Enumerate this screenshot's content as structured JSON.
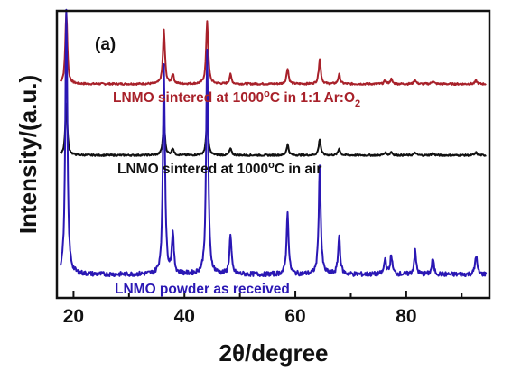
{
  "chart_data": {
    "type": "line",
    "panel_label": "(a)",
    "xlabel": "2θ/degree",
    "ylabel": "Intensity/(a.u.)",
    "xlim": [
      17,
      95
    ],
    "xticks": [
      20,
      40,
      60,
      80
    ],
    "y_ticks_labeled": false,
    "grid": false,
    "legend": "none",
    "series": [
      {
        "label_parts": [
          "LNMO  sintered at 1000",
          "o",
          "C in  1:1 Ar:O",
          "2"
        ],
        "color": "#a8212a",
        "baseline": 0.0,
        "peaks": [
          {
            "x": 18.7,
            "height": 0.45
          },
          {
            "x": 36.3,
            "height": 0.34
          },
          {
            "x": 37.9,
            "height": 0.06
          },
          {
            "x": 44.1,
            "height": 0.4
          },
          {
            "x": 48.3,
            "height": 0.06
          },
          {
            "x": 58.6,
            "height": 0.1
          },
          {
            "x": 64.4,
            "height": 0.16
          },
          {
            "x": 67.9,
            "height": 0.06
          },
          {
            "x": 76.2,
            "height": 0.02
          },
          {
            "x": 77.3,
            "height": 0.03
          },
          {
            "x": 81.6,
            "height": 0.025
          },
          {
            "x": 84.8,
            "height": 0.02
          },
          {
            "x": 92.6,
            "height": 0.02
          }
        ]
      },
      {
        "label_parts": [
          "LNMO sintered at 1000",
          "o",
          "C  in air"
        ],
        "color": "#111111",
        "baseline": 0.0,
        "peaks": [
          {
            "x": 18.7,
            "height": 0.38
          },
          {
            "x": 36.3,
            "height": 0.25
          },
          {
            "x": 37.9,
            "height": 0.05
          },
          {
            "x": 44.1,
            "height": 0.27
          },
          {
            "x": 48.3,
            "height": 0.05
          },
          {
            "x": 58.6,
            "height": 0.08
          },
          {
            "x": 64.4,
            "height": 0.12
          },
          {
            "x": 67.9,
            "height": 0.05
          },
          {
            "x": 76.2,
            "height": 0.02
          },
          {
            "x": 77.3,
            "height": 0.025
          },
          {
            "x": 81.6,
            "height": 0.02
          },
          {
            "x": 84.8,
            "height": 0.015
          },
          {
            "x": 92.6,
            "height": 0.02
          }
        ]
      },
      {
        "label_parts": [
          "LNMO powder as received"
        ],
        "color": "#2a17b4",
        "baseline": 0.0,
        "peaks": [
          {
            "x": 18.7,
            "height": 0.68
          },
          {
            "x": 36.3,
            "height": 0.54
          },
          {
            "x": 37.9,
            "height": 0.1
          },
          {
            "x": 44.1,
            "height": 0.58
          },
          {
            "x": 48.3,
            "height": 0.1
          },
          {
            "x": 58.6,
            "height": 0.16
          },
          {
            "x": 64.4,
            "height": 0.28
          },
          {
            "x": 67.9,
            "height": 0.1
          },
          {
            "x": 76.2,
            "height": 0.04
          },
          {
            "x": 77.3,
            "height": 0.05
          },
          {
            "x": 81.6,
            "height": 0.06
          },
          {
            "x": 84.8,
            "height": 0.04
          },
          {
            "x": 92.6,
            "height": 0.05
          }
        ]
      }
    ]
  }
}
